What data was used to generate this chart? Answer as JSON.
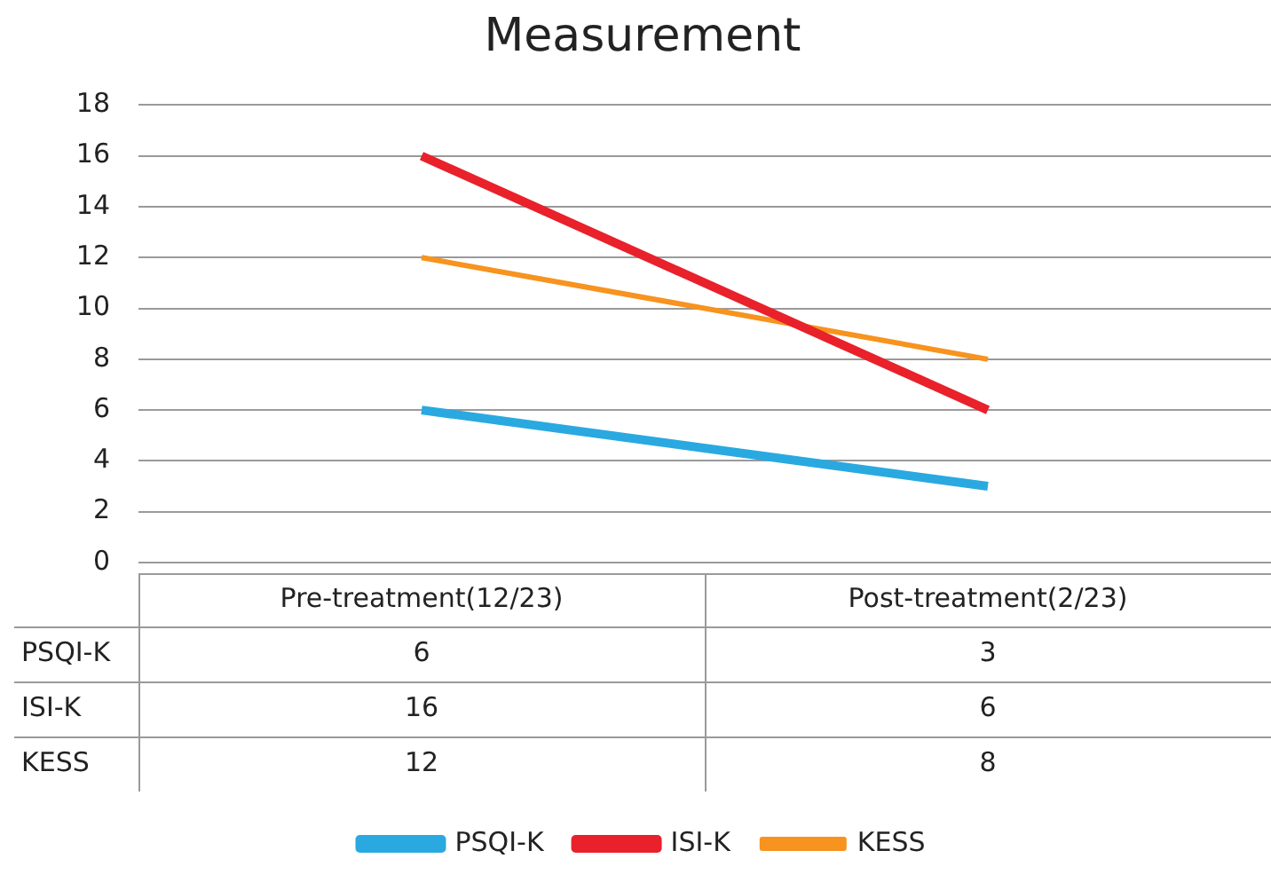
{
  "chart_data": {
    "type": "line",
    "title": "Measurement",
    "categories": [
      "Pre-treatment(12/23)",
      "Post-treatment(2/23)"
    ],
    "series": [
      {
        "name": "PSQI-K",
        "color": "#29a9e0",
        "values": [
          6,
          3
        ]
      },
      {
        "name": "ISI-K",
        "color": "#e8212b",
        "values": [
          16,
          6
        ]
      },
      {
        "name": "KESS",
        "color": "#f7931e",
        "values": [
          12,
          8
        ]
      }
    ],
    "ylim": [
      0,
      18
    ],
    "yticks": [
      0,
      2,
      4,
      6,
      8,
      10,
      12,
      14,
      16,
      18
    ],
    "grid": "y",
    "legend": "bottom",
    "marker": "none",
    "line_style": "solid",
    "data_labels": true
  }
}
